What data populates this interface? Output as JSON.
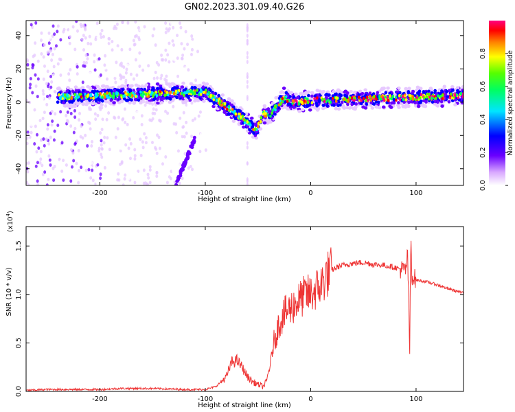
{
  "title": "GN02.2023.301.09.40.G26",
  "colors": {
    "snr_line": "#ee3333",
    "axis": "#000000"
  },
  "chart_data": [
    {
      "type": "heatmap",
      "xlabel": "Height of straight line (km)",
      "ylabel": "Frequency (Hz)",
      "xlim": [
        -270,
        145
      ],
      "ylim": [
        -50,
        49
      ],
      "xticks": [
        -200,
        -100,
        0,
        100
      ],
      "yticks": [
        -40,
        -20,
        0,
        20,
        40
      ],
      "xtick_labels": [
        "-200",
        "-100",
        "0",
        "100"
      ],
      "ytick_labels": [
        "-40",
        "-20",
        "0",
        "20",
        "40"
      ],
      "ridge": {
        "description_points": [
          {
            "x": -240,
            "y": 3
          },
          {
            "x": -150,
            "y": 5
          },
          {
            "x": -100,
            "y": 6
          },
          {
            "x": -90,
            "y": 2
          },
          {
            "x": -75,
            "y": -5
          },
          {
            "x": -60,
            "y": -12
          },
          {
            "x": -52,
            "y": -17
          },
          {
            "x": -48,
            "y": -12
          },
          {
            "x": -45,
            "y": -7
          },
          {
            "x": -38,
            "y": -7
          },
          {
            "x": -30,
            "y": -1
          },
          {
            "x": -25,
            "y": 3
          },
          {
            "x": -18,
            "y": 0
          },
          {
            "x": 0,
            "y": 1
          },
          {
            "x": 50,
            "y": 2
          },
          {
            "x": 100,
            "y": 3
          },
          {
            "x": 145,
            "y": 4
          }
        ]
      },
      "colorbar": {
        "label": "Normalized spectral amplitude",
        "range": [
          0.0,
          1.0
        ],
        "ticks": [
          0.0,
          0.2,
          0.4,
          0.6,
          0.8
        ],
        "tick_labels": [
          "0.0",
          "0.2",
          "0.4",
          "0.6",
          "0.8"
        ]
      }
    },
    {
      "type": "line",
      "xlabel": "Height of straight line (km)",
      "ylabel": "SNR (10 * v/v)",
      "y_multiplier": "(x10",
      "y_multiplier_exp": "4",
      "y_multiplier_close": ")",
      "xlim": [
        -270,
        145
      ],
      "ylim": [
        0.0,
        1.7
      ],
      "xticks": [
        -200,
        -100,
        0,
        100
      ],
      "yticks": [
        0.0,
        0.5,
        1.0,
        1.5
      ],
      "xtick_labels": [
        "-200",
        "-100",
        "0",
        "100"
      ],
      "ytick_labels": [
        "0.0",
        "0.5",
        "1.0",
        "1.5"
      ],
      "series": [
        {
          "x": [
            -270,
            -250,
            -200,
            -180,
            -150,
            -120,
            -100,
            -90,
            -80,
            -75,
            -70,
            -65,
            -60,
            -55,
            -50,
            -45,
            -42,
            -38,
            -35,
            -30,
            -25,
            -20,
            -15,
            -10,
            -5,
            0,
            5,
            10,
            15,
            20,
            25,
            30,
            40,
            50,
            60,
            70,
            80,
            85,
            90,
            92,
            94,
            95,
            96,
            100,
            110,
            120,
            130,
            140,
            145
          ],
          "y": [
            0.01,
            0.02,
            0.02,
            0.03,
            0.03,
            0.02,
            0.02,
            0.05,
            0.15,
            0.3,
            0.32,
            0.25,
            0.15,
            0.1,
            0.07,
            0.05,
            0.1,
            0.3,
            0.5,
            0.7,
            0.8,
            0.85,
            0.9,
            0.95,
            1.0,
            1.0,
            1.05,
            1.1,
            1.2,
            1.25,
            1.28,
            1.3,
            1.32,
            1.33,
            1.31,
            1.3,
            1.28,
            1.26,
            1.25,
            1.4,
            0.4,
            1.62,
            1.2,
            1.15,
            1.13,
            1.1,
            1.06,
            1.03,
            1.01
          ]
        }
      ]
    }
  ]
}
